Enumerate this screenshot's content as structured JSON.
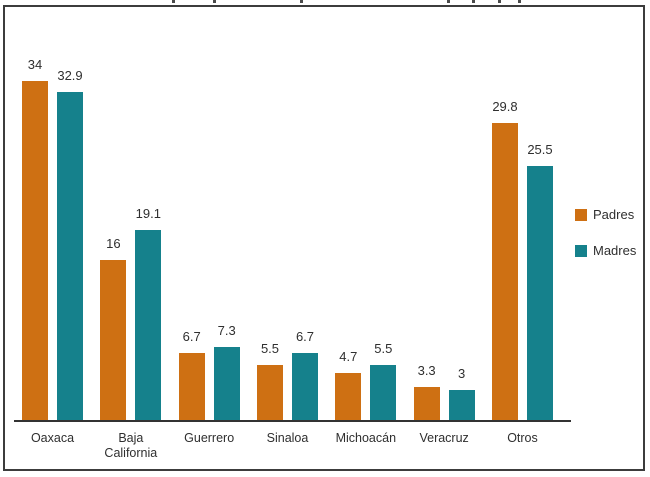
{
  "chart_data": {
    "type": "bar",
    "categories": [
      "Oaxaca",
      "Baja\nCalifornia",
      "Guerrero",
      "Sinaloa",
      "Michoacán",
      "Veracruz",
      "Otros"
    ],
    "series": [
      {
        "name": "Padres",
        "color": "#CE7013",
        "values": [
          34,
          16,
          6.7,
          5.5,
          4.7,
          3.3,
          29.8
        ],
        "labels": [
          "34",
          "16",
          "6.7",
          "5.5",
          "4.7",
          "3.3",
          "29.8"
        ]
      },
      {
        "name": "Madres",
        "color": "#15818C",
        "values": [
          32.9,
          19.1,
          7.3,
          6.7,
          5.5,
          3,
          25.5
        ],
        "labels": [
          "32.9",
          "19.1",
          "7.3",
          "6.7",
          "5.5",
          "3",
          "25.5"
        ]
      }
    ],
    "title": "",
    "xlabel": "",
    "ylabel": "",
    "ylim": [
      0,
      36
    ],
    "grid": false,
    "legend_position": "right",
    "value_labels": true,
    "label_color": "#2f2f2f",
    "axis_color": "#333333",
    "frame_color": "#3c3c3c"
  },
  "legend": {
    "items": [
      {
        "label": "Padres",
        "color": "#CE7013"
      },
      {
        "label": "Madres",
        "color": "#15818C"
      }
    ]
  }
}
